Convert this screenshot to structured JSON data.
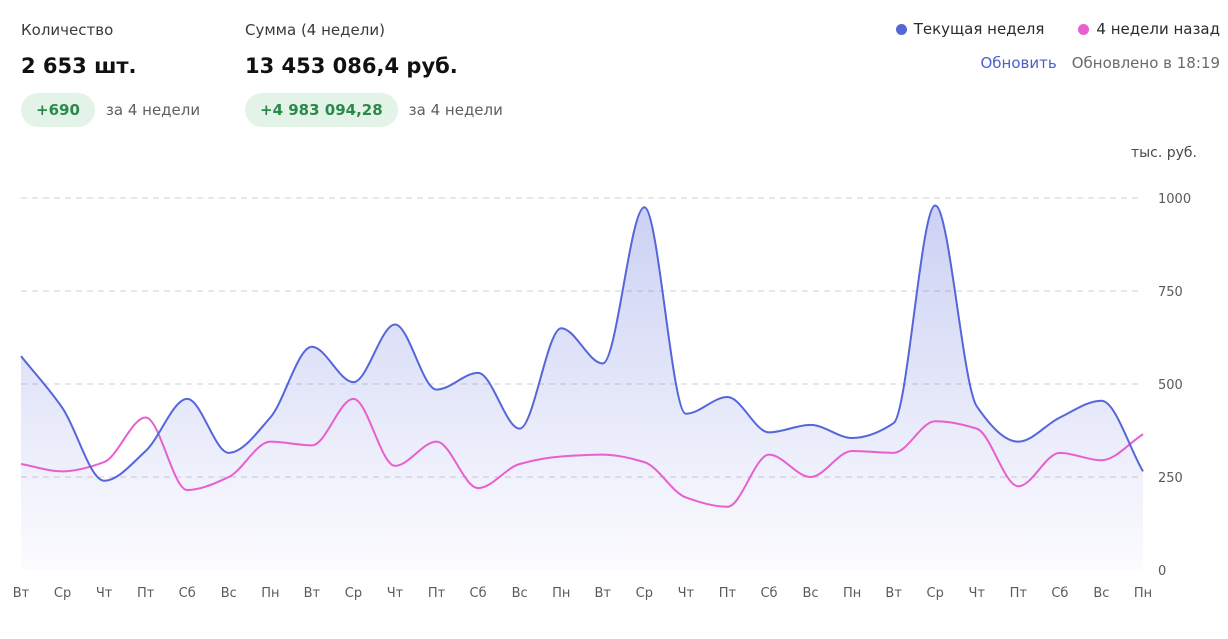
{
  "stats": {
    "quantity": {
      "label": "Количество",
      "value": "2 653 шт.",
      "delta": "+690",
      "period": "за 4 недели"
    },
    "sum": {
      "label": "Сумма (4 недели)",
      "value": "13 453 086,4 руб.",
      "delta": "+4 983 094,28",
      "period": "за 4 недели"
    }
  },
  "legend": {
    "current": "Текущая неделя",
    "previous": "4 недели назад"
  },
  "refresh": {
    "button_label": "Обновить",
    "updated_text": "Обновлено в 18:19"
  },
  "colors": {
    "current": "#5566d9",
    "previous": "#e85fcf",
    "delta_bg": "#e3f3e7",
    "delta_text": "#2a8a4a",
    "link": "#4a5fcf"
  },
  "chart_data": {
    "type": "area",
    "unit_label": "тыс. руб.",
    "ylim": [
      0,
      1000
    ],
    "yticks": [
      0,
      250,
      500,
      750,
      1000
    ],
    "grid": true,
    "legend_position": "top-right",
    "categories": [
      "Вт",
      "Ср",
      "Чт",
      "Пт",
      "Сб",
      "Вс",
      "Пн",
      "Вт",
      "Ср",
      "Чт",
      "Пт",
      "Сб",
      "Вс",
      "Пн",
      "Вт",
      "Ср",
      "Чт",
      "Пт",
      "Сб",
      "Вс",
      "Пн",
      "Вт",
      "Ср",
      "Чт",
      "Пт",
      "Сб",
      "Вс",
      "Пн"
    ],
    "series": [
      {
        "name": "Текущая неделя",
        "color": "#5566d9",
        "values": [
          575,
          435,
          240,
          320,
          460,
          315,
          410,
          600,
          505,
          660,
          485,
          530,
          380,
          650,
          555,
          975,
          420,
          465,
          370,
          390,
          355,
          395,
          980,
          440,
          345,
          410,
          455,
          265
        ]
      },
      {
        "name": "4 недели назад",
        "color": "#e85fcf",
        "values": [
          285,
          265,
          290,
          410,
          215,
          250,
          345,
          335,
          460,
          280,
          345,
          220,
          285,
          305,
          310,
          290,
          195,
          170,
          310,
          250,
          320,
          315,
          400,
          380,
          225,
          315,
          295,
          365
        ]
      }
    ]
  }
}
